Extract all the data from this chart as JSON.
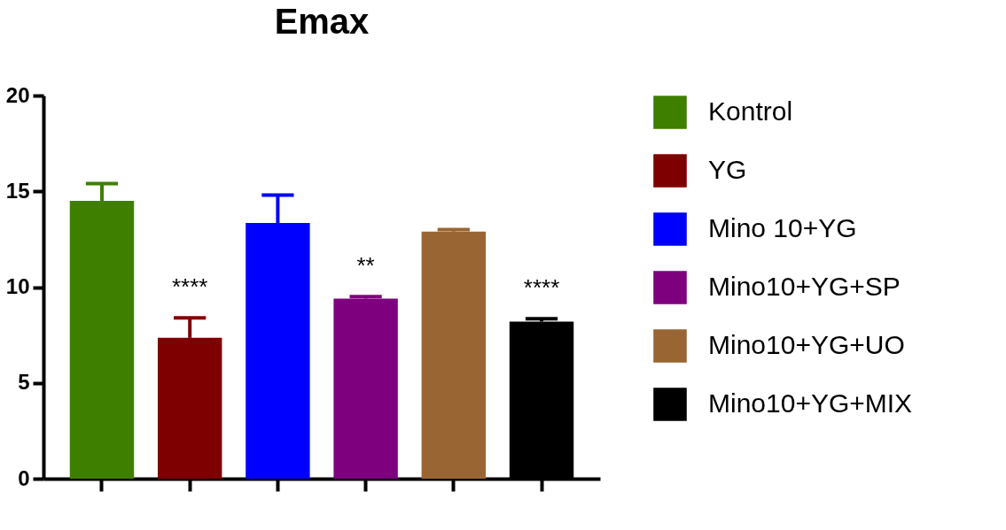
{
  "chart_data": {
    "type": "bar",
    "title": "Emax",
    "categories": [
      null,
      null,
      null,
      null,
      null,
      null
    ],
    "series": [
      {
        "name": "Kontrol",
        "color": "#3f7f00",
        "values": [
          14.5,
          null,
          null,
          null,
          null,
          null
        ],
        "errors": [
          [
            14.5,
            15.4
          ],
          null,
          null,
          null,
          null,
          null
        ]
      },
      {
        "name": "YG",
        "color": "#7f0000",
        "values": [
          null,
          7.35,
          null,
          null,
          null,
          null
        ],
        "errors": [
          null,
          [
            7.35,
            8.4
          ],
          null,
          null,
          null,
          null
        ],
        "value_labels": [
          null,
          "****",
          null,
          null,
          null,
          null
        ]
      },
      {
        "name": "Mino 10+YG",
        "color": "#0000ff",
        "values": [
          null,
          null,
          13.35,
          null,
          null,
          null
        ],
        "errors": [
          null,
          null,
          [
            13.35,
            14.8
          ],
          null,
          null,
          null
        ]
      },
      {
        "name": "Mino10+YG+SP",
        "color": "#7f007f",
        "values": [
          null,
          null,
          null,
          9.4,
          null,
          null
        ],
        "errors": [
          null,
          null,
          null,
          [
            9.4,
            9.5
          ],
          null,
          null
        ],
        "value_labels": [
          null,
          null,
          null,
          "**",
          null,
          null
        ]
      },
      {
        "name": "Mino10+YG+UO",
        "color": "#996633",
        "values": [
          null,
          null,
          null,
          null,
          12.9,
          null
        ],
        "errors": [
          null,
          null,
          null,
          null,
          [
            12.9,
            13.0
          ],
          null
        ]
      },
      {
        "name": "Mino10+YG+MIX",
        "color": "#000000",
        "values": [
          null,
          null,
          null,
          null,
          null,
          8.2
        ],
        "errors": [
          null,
          null,
          null,
          null,
          null,
          [
            8.2,
            8.35
          ]
        ],
        "value_labels": [
          null,
          null,
          null,
          null,
          null,
          "****"
        ]
      }
    ],
    "ylim": [
      0,
      20
    ],
    "yticks": [
      0,
      5,
      10,
      15,
      20
    ],
    "tick_labels": "y",
    "legend": "right",
    "grid": false
  }
}
